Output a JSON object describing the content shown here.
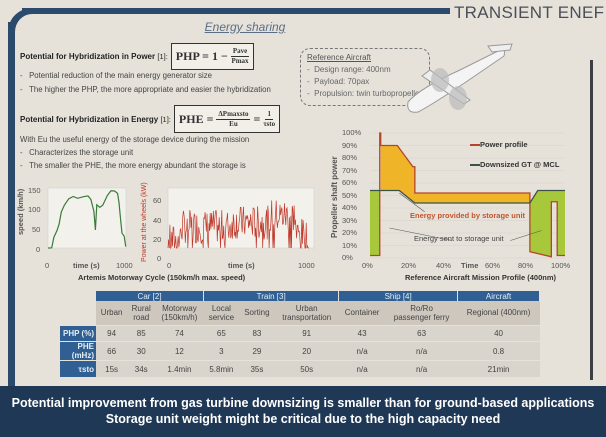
{
  "header": {
    "title": "TRANSIENT ENEF",
    "section": "Energy sharing"
  },
  "php": {
    "heading": "Potential for Hybridization in Power",
    "ref": "[1]:",
    "formula_lhs": "PHP = 1 −",
    "num": "Pave",
    "den": "Pmax",
    "bullets": [
      "Potential reduction of the main energy generator size",
      "The higher the PHP, the more appropriate and easier the hybridization"
    ]
  },
  "phe": {
    "heading": "Potential for Hybridization in Energy",
    "ref": "[1]:",
    "formula_lhs": "PHE =",
    "num": "ΔPmaxsto",
    "den": "Eu",
    "eq": "=",
    "num2": "1",
    "den2": "τsto",
    "note": "With Eu the useful energy of the storage device during the mission",
    "bullets": [
      "Characterizes the storage unit",
      "The smaller the PHE, the more energy abundant the storage is"
    ]
  },
  "reference": {
    "title": "Reference Aircraft",
    "items": [
      "Design range: 400nm",
      "Payload: 70pax",
      "Propulsion: twin turbopropeller"
    ]
  },
  "artemis": {
    "caption": "Artemis Motorway Cycle (150km/h max. speed)",
    "speed": {
      "ylabel": "speed (km/h)",
      "xlabel": "time (s)",
      "yticks": [
        "150",
        "100",
        "50",
        "0"
      ],
      "xticks": [
        "0",
        "1000"
      ],
      "color": "#3a7a3a"
    },
    "power": {
      "ylabel": "Power at the wheels (kW)",
      "xlabel": "time (s)",
      "yticks": [
        "60",
        "40",
        "20",
        "0"
      ],
      "xticks": [
        "0",
        "1000"
      ],
      "color": "#c0392b"
    }
  },
  "mission": {
    "caption": "Reference Aircraft Mission Profile (400nm)",
    "ylabel": "Propeller shaft power",
    "xlabel": "Time",
    "yticks": [
      "100%",
      "90%",
      "80%",
      "70%",
      "60%",
      "50%",
      "40%",
      "30%",
      "20%",
      "10%",
      "0%"
    ],
    "xticks": [
      "0%",
      "20%",
      "40%",
      "60%",
      "80%",
      "100%"
    ],
    "legend": [
      "Power profile",
      "Downsized GT @ MCL"
    ],
    "annotations": [
      "Energy provided by storage unit",
      "Energy sent to storage unit"
    ],
    "power_profile": [
      [
        0,
        2
      ],
      [
        5,
        2
      ],
      [
        5,
        100
      ],
      [
        5.5,
        100
      ],
      [
        5.5,
        90
      ],
      [
        14,
        90
      ],
      [
        22,
        73
      ],
      [
        23,
        73
      ],
      [
        23,
        52
      ],
      [
        82,
        52
      ],
      [
        82,
        5
      ],
      [
        93,
        1
      ],
      [
        93,
        45
      ],
      [
        96,
        45
      ],
      [
        96,
        2
      ],
      [
        100,
        2
      ]
    ],
    "gt_line": [
      [
        0,
        54
      ],
      [
        15,
        54
      ],
      [
        23,
        44
      ],
      [
        82,
        44
      ],
      [
        86,
        54
      ],
      [
        100,
        54
      ]
    ],
    "colors": {
      "power": "#b5452a",
      "gt": "#3b5348",
      "provided": "#f0b429",
      "sent": "#a8c83c"
    }
  },
  "table": {
    "groups": [
      {
        "label": "Car [2]",
        "span": 3
      },
      {
        "label": "Train [3]",
        "span": 3
      },
      {
        "label": "Ship [4]",
        "span": 2
      },
      {
        "label": "Aircraft",
        "span": 1
      }
    ],
    "columns": [
      [
        "Urban"
      ],
      [
        "Rural",
        "road"
      ],
      [
        "Motorway",
        "(150km/h)"
      ],
      [
        "Local",
        "service"
      ],
      [
        "Sorting"
      ],
      [
        "Urban",
        "transportation"
      ],
      [
        "Container"
      ],
      [
        "Ro/Ro",
        "passenger ferry"
      ],
      [
        "Regional (400nm)"
      ]
    ],
    "rows": [
      {
        "label": "PHP (%)",
        "values": [
          "94",
          "85",
          "74",
          "65",
          "83",
          "91",
          "43",
          "63",
          "40"
        ]
      },
      {
        "label": "PHE (mHz)",
        "values": [
          "66",
          "30",
          "12",
          "3",
          "29",
          "20",
          "n/a",
          "n/a",
          "0.8"
        ]
      },
      {
        "label": "τsto",
        "values": [
          "15s",
          "34s",
          "1.4min",
          "5.8min",
          "35s",
          "50s",
          "n/a",
          "n/a",
          "21min"
        ]
      }
    ]
  },
  "banner": [
    "Potential improvement from gas turbine downsizing is smaller than for ground-based applications",
    "Storage unit weight might be critical due to the high capacity need"
  ]
}
